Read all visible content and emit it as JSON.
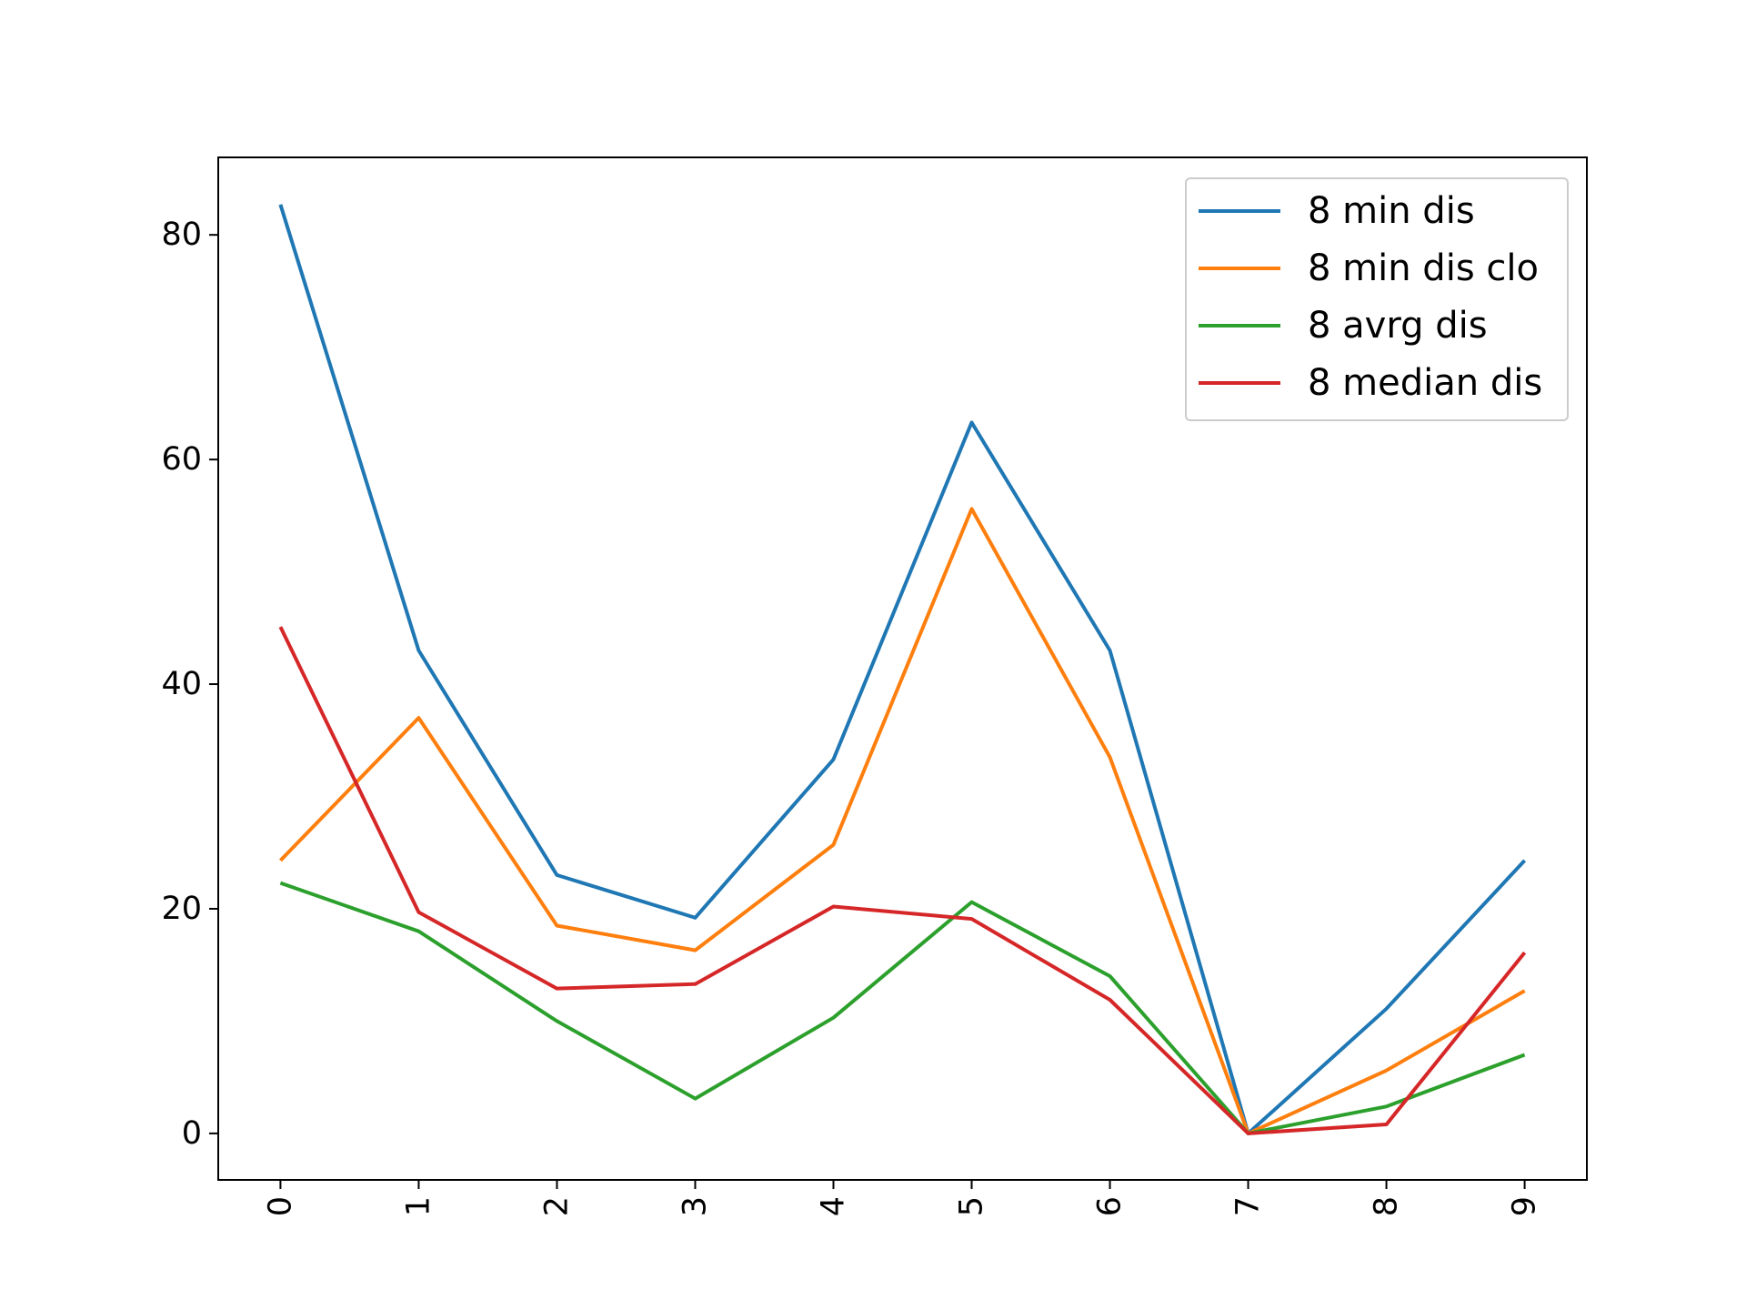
{
  "chart_data": {
    "type": "line",
    "title": "",
    "xlabel": "",
    "ylabel": "",
    "categories": [
      "0",
      "1",
      "2",
      "3",
      "4",
      "5",
      "6",
      "7",
      "8",
      "9"
    ],
    "x_tick_rotation": 90,
    "y_ticks": [
      0,
      20,
      40,
      60,
      80
    ],
    "y_tick_labels": [
      "0",
      "20",
      "40",
      "60",
      "80"
    ],
    "ylim": [
      -4.14,
      86.9
    ],
    "xlim": [
      -0.45,
      9.45
    ],
    "grid": false,
    "legend_position": "upper-right",
    "series": [
      {
        "name": "8 min dis",
        "color": "#1f77b4",
        "values": [
          82.7,
          43.0,
          23.0,
          19.2,
          33.3,
          63.3,
          43.0,
          0.0,
          11.1,
          24.3
        ]
      },
      {
        "name": "8 min dis clo",
        "color": "#ff7f0e",
        "values": [
          24.3,
          37.0,
          18.5,
          16.3,
          25.7,
          55.6,
          33.5,
          0.0,
          5.6,
          12.7
        ]
      },
      {
        "name": "8 avrg dis",
        "color": "#2ca02c",
        "values": [
          22.3,
          18.0,
          10.0,
          3.1,
          10.3,
          20.6,
          14.0,
          0.0,
          2.4,
          7.0
        ]
      },
      {
        "name": "8 median dis",
        "color": "#d62728",
        "values": [
          45.1,
          19.7,
          12.9,
          13.3,
          20.2,
          19.1,
          11.9,
          0.0,
          0.8,
          16.1
        ]
      }
    ]
  }
}
